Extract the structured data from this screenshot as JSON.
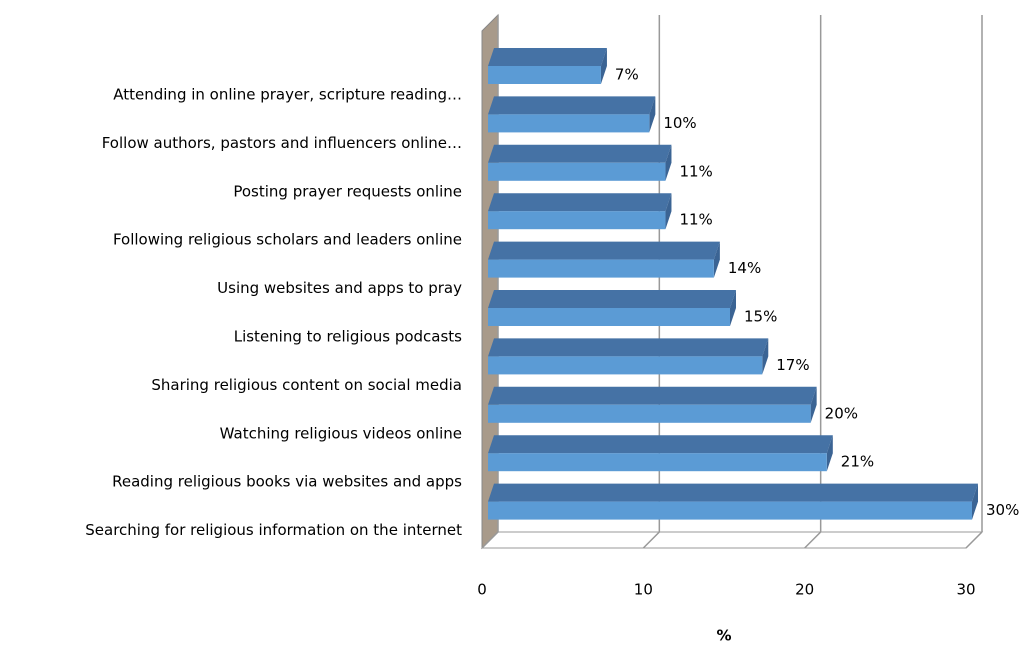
{
  "chart_data": {
    "type": "bar3d_horizontal",
    "categories": [
      "Attending in online prayer, scripture reading…",
      "Follow authors, pastors and influencers online…",
      "Posting prayer requests online",
      "Following religious scholars and leaders online",
      "Using websites and apps to pray",
      "Listening to religious podcasts",
      "Sharing religious content on social media",
      "Watching religious videos online",
      "Reading religious books via websites and apps",
      "Searching for religious information on the internet"
    ],
    "values": [
      7,
      10,
      11,
      11,
      14,
      15,
      17,
      20,
      21,
      30
    ],
    "value_labels": [
      "7%",
      "10%",
      "11%",
      "11%",
      "14%",
      "15%",
      "17%",
      "20%",
      "21%",
      "30%"
    ],
    "color": "#5b9bd5",
    "xlim": [
      0,
      30
    ],
    "xticks": [
      0,
      10,
      20,
      30
    ],
    "xlabel": "%",
    "grid": true
  }
}
